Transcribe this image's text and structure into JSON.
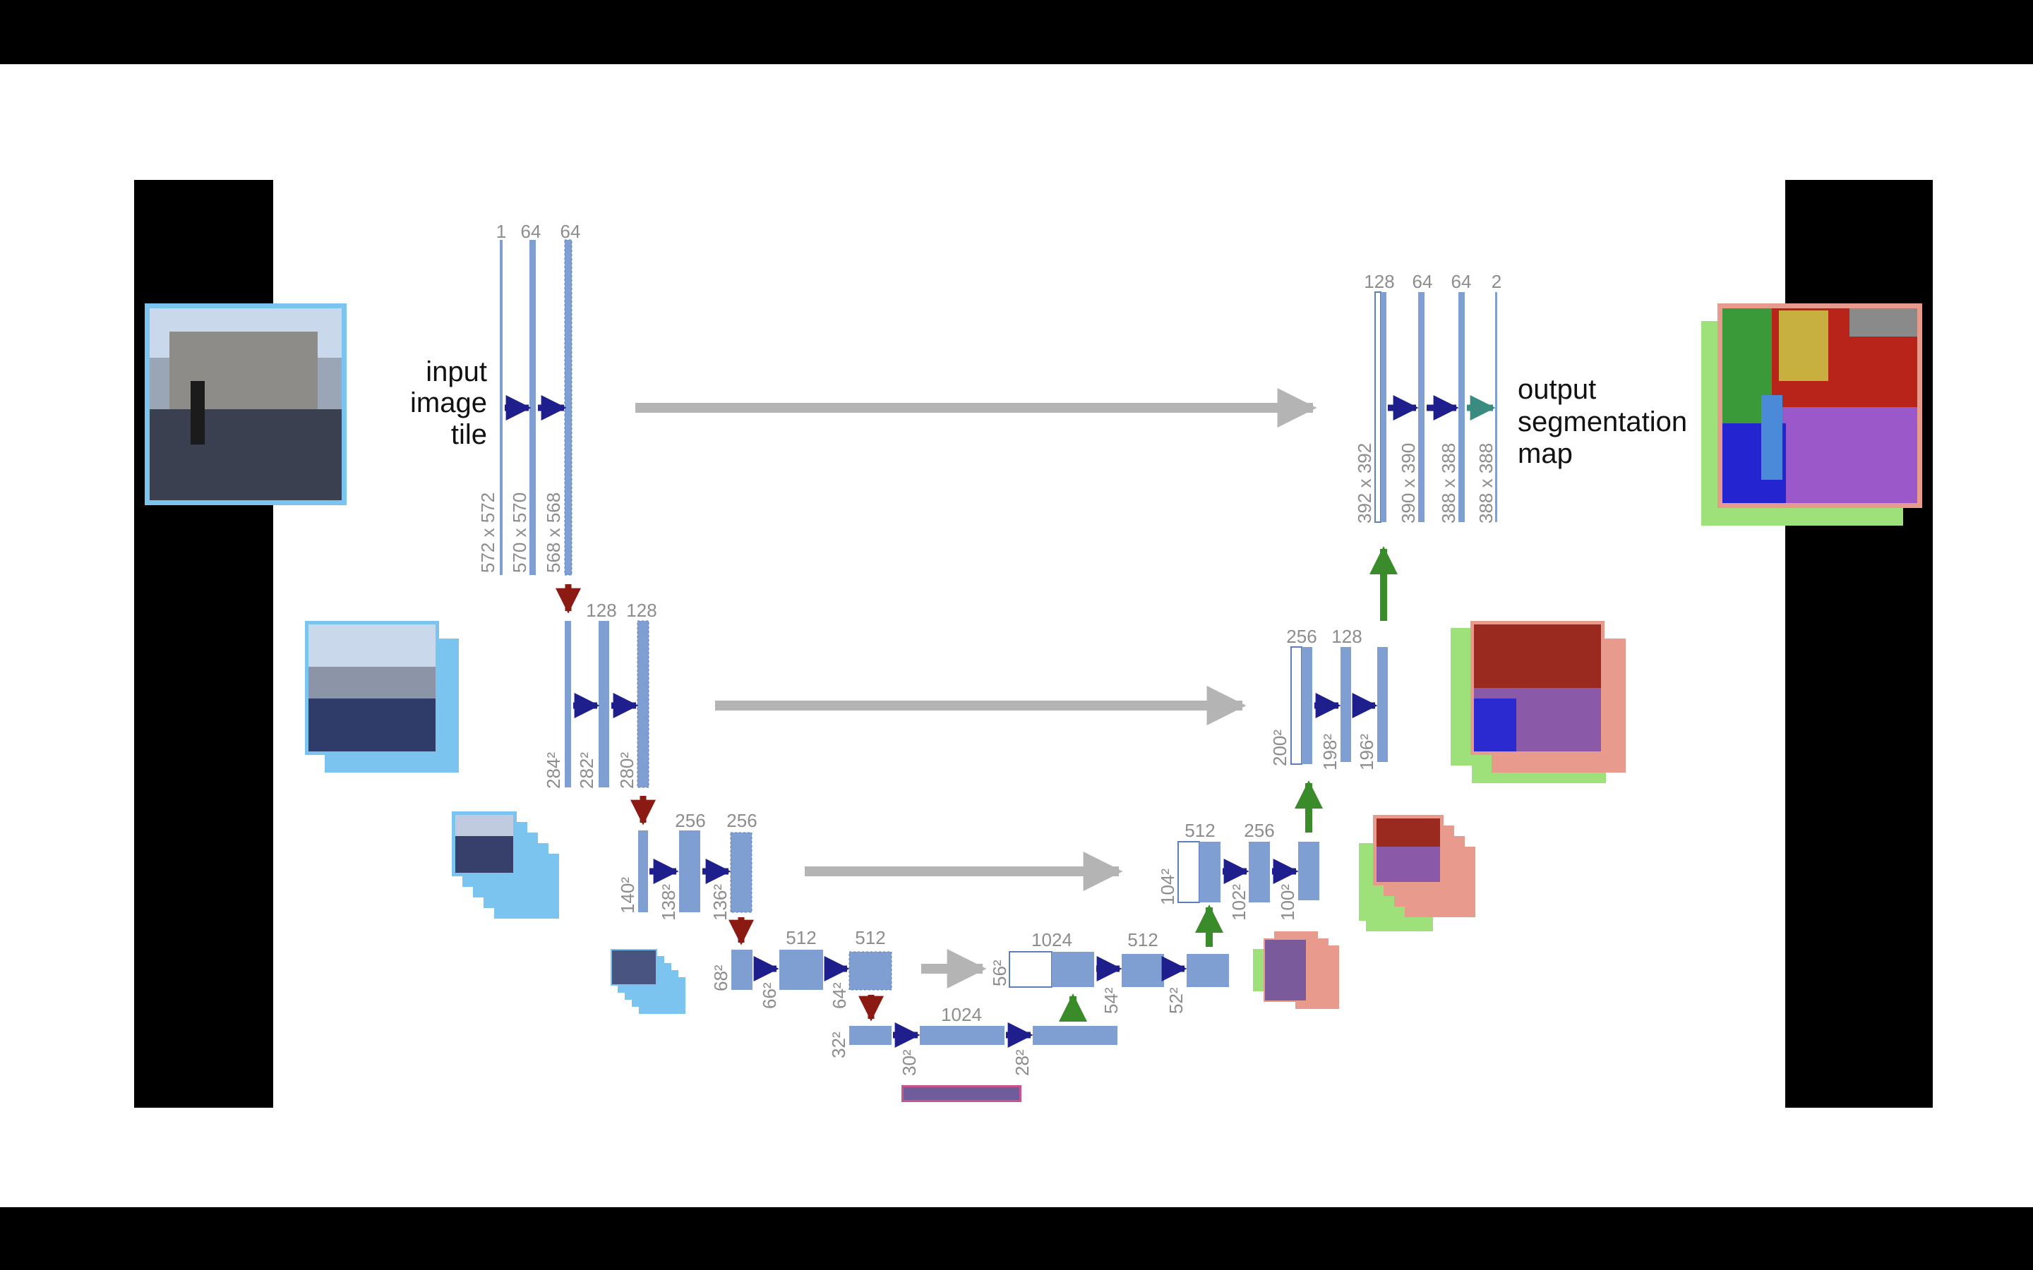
{
  "colors": {
    "feature_map": "#7f9fd3",
    "feature_map_stroke": "#5b7fbf",
    "conv_arrow": "#1e1e8c",
    "pool_arrow": "#8b1a12",
    "upconv_arrow": "#3a8c2a",
    "copy_arrow": "#b4b4b4",
    "final_conv_arrow": "#3a8c80",
    "input_frame": "#7cc4f0",
    "output_frame_pink": "#e89a8c",
    "output_frame_green": "#9ee07a"
  },
  "texts": {
    "input_line1": "input",
    "input_line2": "image",
    "input_line3": "tile",
    "output_line1": "output",
    "output_line2": "segmentation",
    "output_line3": "map"
  },
  "encoder": {
    "level1": {
      "channels": [
        "1",
        "64",
        "64"
      ],
      "sizes": [
        "572 x 572",
        "570 x 570",
        "568 x 568"
      ]
    },
    "level2": {
      "channels": [
        "128",
        "128"
      ],
      "sizes": [
        "284²",
        "282²",
        "280²"
      ]
    },
    "level3": {
      "channels": [
        "256",
        "256"
      ],
      "sizes": [
        "140²",
        "138²",
        "136²"
      ]
    },
    "level4": {
      "channels": [
        "512",
        "512"
      ],
      "sizes": [
        "68²",
        "66²",
        "64²"
      ]
    },
    "bottleneck": {
      "channels": [
        "1024"
      ],
      "sizes": [
        "32²",
        "30²",
        "28²"
      ]
    }
  },
  "decoder": {
    "level4": {
      "channels": [
        "1024",
        "512"
      ],
      "sizes": [
        "56²",
        "54²",
        "52²"
      ]
    },
    "level3": {
      "channels": [
        "512",
        "256"
      ],
      "sizes": [
        "104²",
        "102²",
        "100²"
      ]
    },
    "level2": {
      "channels": [
        "256",
        "128"
      ],
      "sizes": [
        "200²",
        "198²",
        "196²"
      ]
    },
    "level1": {
      "channels": [
        "128",
        "64",
        "64",
        "2"
      ],
      "sizes": [
        "392 x 392",
        "390 x 390",
        "388 x 388",
        "388 x 388"
      ]
    }
  }
}
